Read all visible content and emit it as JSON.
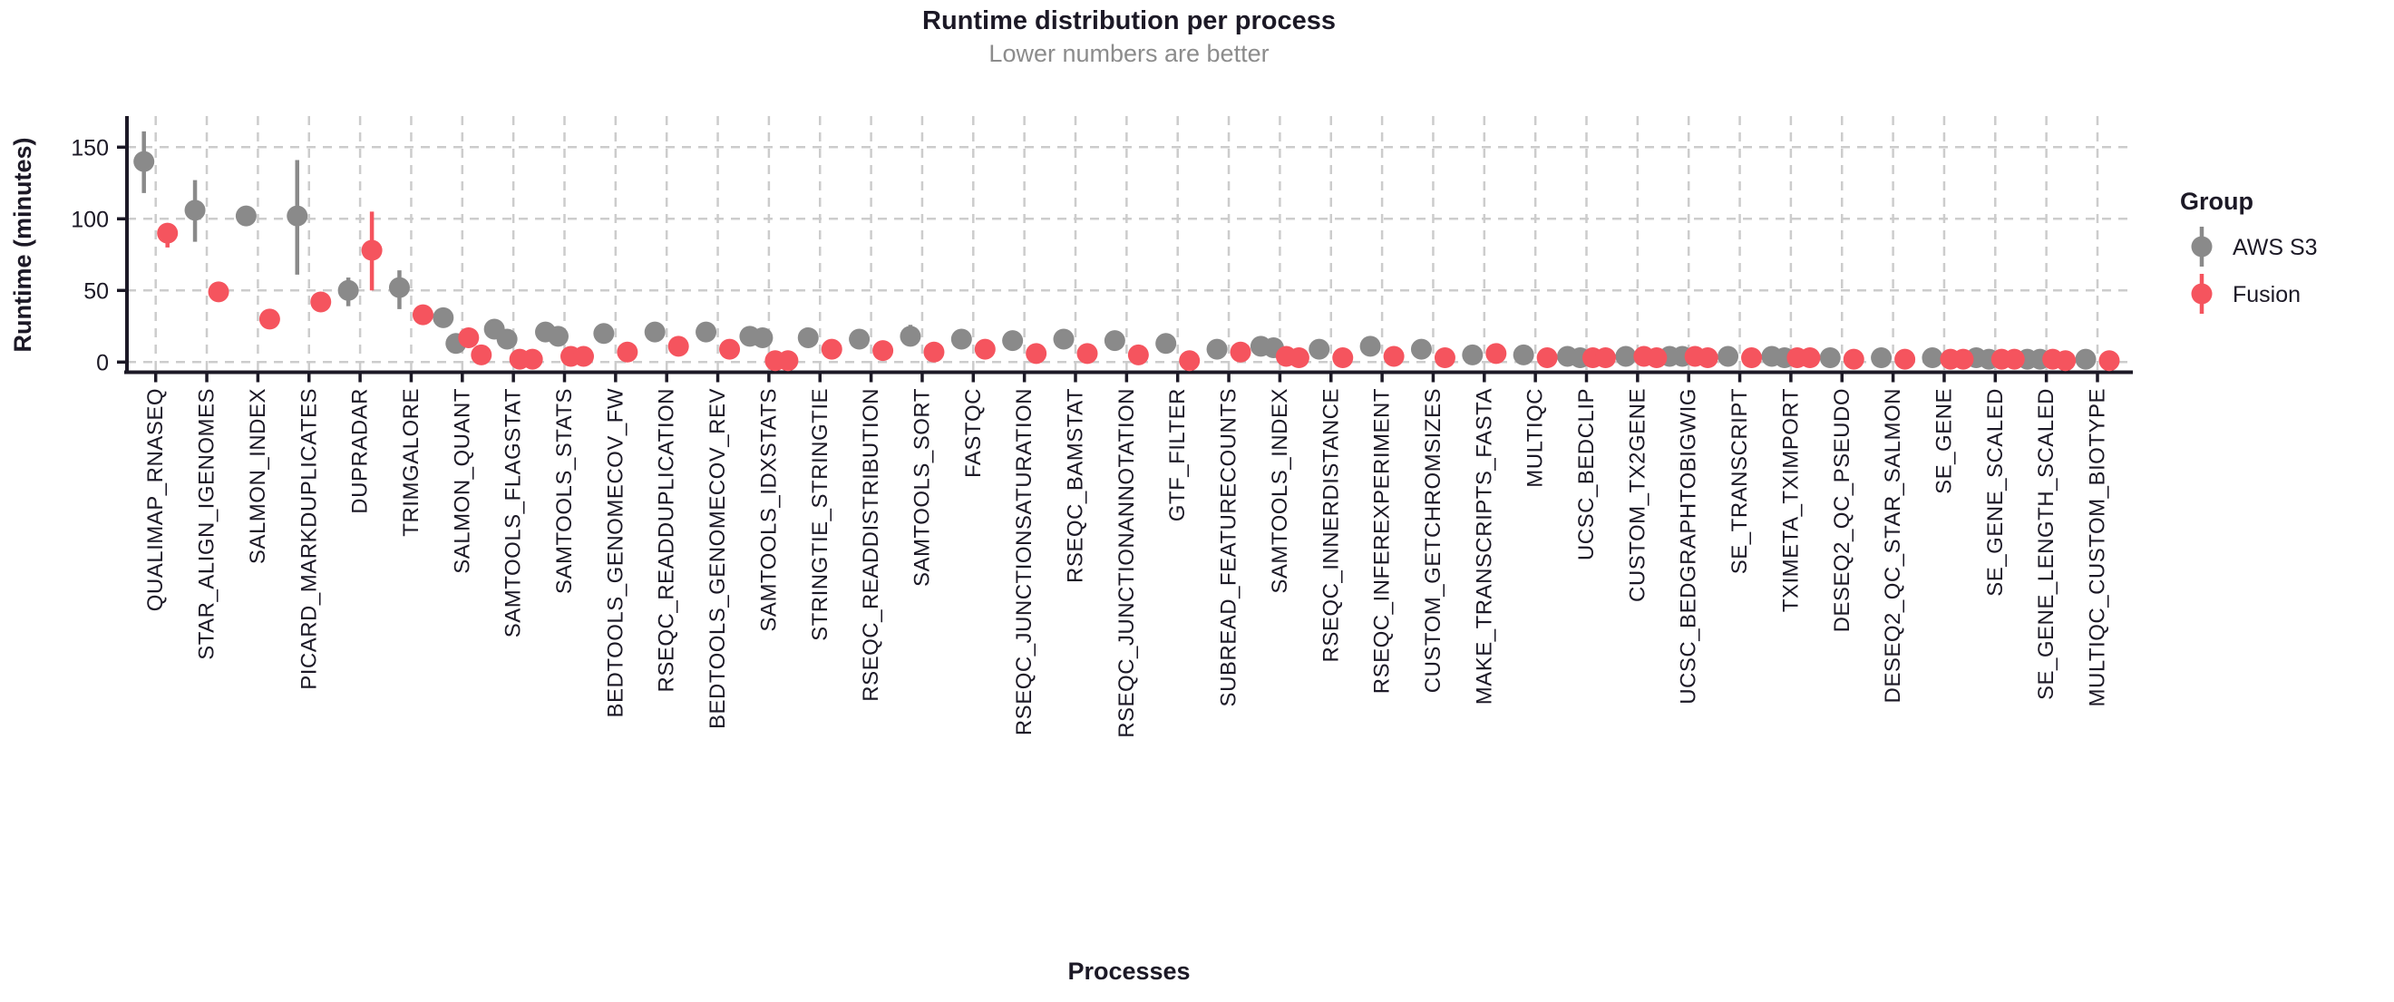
{
  "title": "Runtime distribution per process",
  "subtitle": "Lower numbers are better",
  "y_axis_title": "Runtime (minutes)",
  "x_axis_title": "Processes",
  "legend": {
    "title": "Group",
    "entries": [
      {
        "label": "AWS S3",
        "color": "#8a8a8a"
      },
      {
        "label": "Fusion",
        "color": "#f5545e"
      }
    ]
  },
  "colors": {
    "aws": "#8a8a8a",
    "fusion": "#f5545e",
    "axis": "#1c1926",
    "grid": "#cccccc",
    "subtitle": "#8c8c8c",
    "background": "#ffffff"
  },
  "chart_data": {
    "type": "scatter",
    "subtype": "pointrange-dodged",
    "title": "Runtime distribution per process",
    "subtitle": "Lower numbers are better",
    "xlabel": "Processes",
    "ylabel": "Runtime (minutes)",
    "yticks": [
      0,
      50,
      100,
      150
    ],
    "ylim": [
      0,
      170
    ],
    "grid": "dashed",
    "legend_position": "right",
    "series_names": [
      "AWS S3",
      "Fusion"
    ],
    "units": "minutes",
    "processes": [
      {
        "name": "QUALIMAP_RNASEQ",
        "aws": {
          "values": [
            140
          ],
          "range": [
            118,
            161
          ]
        },
        "fusion": {
          "values": [
            90
          ],
          "range": [
            80,
            97
          ]
        }
      },
      {
        "name": "STAR_ALIGN_IGENOMES",
        "aws": {
          "values": [
            106
          ],
          "range": [
            84,
            127
          ]
        },
        "fusion": {
          "values": [
            49
          ],
          "range": null
        }
      },
      {
        "name": "SALMON_INDEX",
        "aws": {
          "values": [
            102
          ],
          "range": null
        },
        "fusion": {
          "values": [
            30
          ],
          "range": null
        }
      },
      {
        "name": "PICARD_MARKDUPLICATES",
        "aws": {
          "values": [
            102
          ],
          "range": [
            61,
            141
          ]
        },
        "fusion": {
          "values": [
            42
          ],
          "range": null
        }
      },
      {
        "name": "DUPRADAR",
        "aws": {
          "values": [
            50
          ],
          "range": [
            39,
            59
          ]
        },
        "fusion": {
          "values": [
            78
          ],
          "range": [
            50,
            105
          ]
        }
      },
      {
        "name": "TRIMGALORE",
        "aws": {
          "values": [
            52
          ],
          "range": [
            37,
            64
          ]
        },
        "fusion": {
          "values": [
            33
          ],
          "range": null
        }
      },
      {
        "name": "SALMON_QUANT",
        "aws": {
          "values": [
            31,
            13
          ],
          "range": null
        },
        "fusion": {
          "values": [
            17,
            5
          ],
          "range": null
        }
      },
      {
        "name": "SAMTOOLS_FLAGSTAT",
        "aws": {
          "values": [
            23,
            16
          ],
          "range": null
        },
        "fusion": {
          "values": [
            2,
            2
          ],
          "range": null
        }
      },
      {
        "name": "SAMTOOLS_STATS",
        "aws": {
          "values": [
            21,
            18
          ],
          "range": null
        },
        "fusion": {
          "values": [
            4,
            4
          ],
          "range": null
        }
      },
      {
        "name": "BEDTOOLS_GENOMECOV_FW",
        "aws": {
          "values": [
            20
          ],
          "range": null
        },
        "fusion": {
          "values": [
            7
          ],
          "range": null
        }
      },
      {
        "name": "RSEQC_READDUPLICATION",
        "aws": {
          "values": [
            21
          ],
          "range": null
        },
        "fusion": {
          "values": [
            11
          ],
          "range": null
        }
      },
      {
        "name": "BEDTOOLS_GENOMECOV_REV",
        "aws": {
          "values": [
            21
          ],
          "range": null
        },
        "fusion": {
          "values": [
            9
          ],
          "range": null
        }
      },
      {
        "name": "SAMTOOLS_IDXSTATS",
        "aws": {
          "values": [
            18,
            17
          ],
          "range": null
        },
        "fusion": {
          "values": [
            1,
            1
          ],
          "range": null
        }
      },
      {
        "name": "STRINGTIE_STRINGTIE",
        "aws": {
          "values": [
            17
          ],
          "range": null
        },
        "fusion": {
          "values": [
            9
          ],
          "range": null
        }
      },
      {
        "name": "RSEQC_READDISTRIBUTION",
        "aws": {
          "values": [
            16
          ],
          "range": null
        },
        "fusion": {
          "values": [
            8
          ],
          "range": null
        }
      },
      {
        "name": "SAMTOOLS_SORT",
        "aws": {
          "values": [
            18
          ],
          "range": [
            11,
            26
          ]
        },
        "fusion": {
          "values": [
            7
          ],
          "range": null
        }
      },
      {
        "name": "FASTQC",
        "aws": {
          "values": [
            16
          ],
          "range": null
        },
        "fusion": {
          "values": [
            9
          ],
          "range": null
        }
      },
      {
        "name": "RSEQC_JUNCTIONSATURATION",
        "aws": {
          "values": [
            15
          ],
          "range": null
        },
        "fusion": {
          "values": [
            6
          ],
          "range": null
        }
      },
      {
        "name": "RSEQC_BAMSTAT",
        "aws": {
          "values": [
            16
          ],
          "range": null
        },
        "fusion": {
          "values": [
            6
          ],
          "range": null
        }
      },
      {
        "name": "RSEQC_JUNCTIONANNOTATION",
        "aws": {
          "values": [
            15
          ],
          "range": null
        },
        "fusion": {
          "values": [
            5
          ],
          "range": null
        }
      },
      {
        "name": "GTF_FILTER",
        "aws": {
          "values": [
            13
          ],
          "range": null
        },
        "fusion": {
          "values": [
            1
          ],
          "range": null
        }
      },
      {
        "name": "SUBREAD_FEATURECOUNTS",
        "aws": {
          "values": [
            9
          ],
          "range": null
        },
        "fusion": {
          "values": [
            7
          ],
          "range": null
        }
      },
      {
        "name": "SAMTOOLS_INDEX",
        "aws": {
          "values": [
            11,
            10
          ],
          "range": null
        },
        "fusion": {
          "values": [
            4,
            3
          ],
          "range": null
        }
      },
      {
        "name": "RSEQC_INNERDISTANCE",
        "aws": {
          "values": [
            9
          ],
          "range": null
        },
        "fusion": {
          "values": [
            3
          ],
          "range": null
        }
      },
      {
        "name": "RSEQC_INFEREXPERIMENT",
        "aws": {
          "values": [
            11
          ],
          "range": null
        },
        "fusion": {
          "values": [
            4
          ],
          "range": null
        }
      },
      {
        "name": "CUSTOM_GETCHROMSIZES",
        "aws": {
          "values": [
            9
          ],
          "range": null
        },
        "fusion": {
          "values": [
            3
          ],
          "range": null
        }
      },
      {
        "name": "MAKE_TRANSCRIPTS_FASTA",
        "aws": {
          "values": [
            5
          ],
          "range": null
        },
        "fusion": {
          "values": [
            6
          ],
          "range": null
        }
      },
      {
        "name": "MULTIQC",
        "aws": {
          "values": [
            5
          ],
          "range": null
        },
        "fusion": {
          "values": [
            3
          ],
          "range": null
        }
      },
      {
        "name": "UCSC_BEDCLIP",
        "aws": {
          "values": [
            4,
            3
          ],
          "range": null
        },
        "fusion": {
          "values": [
            3,
            3
          ],
          "range": null
        }
      },
      {
        "name": "CUSTOM_TX2GENE",
        "aws": {
          "values": [
            4
          ],
          "range": null
        },
        "fusion": {
          "values": [
            4,
            3
          ],
          "range": null
        }
      },
      {
        "name": "UCSC_BEDGRAPHTOBIGWIG",
        "aws": {
          "values": [
            4,
            4
          ],
          "range": null
        },
        "fusion": {
          "values": [
            4,
            3
          ],
          "range": null
        }
      },
      {
        "name": "SE_TRANSCRIPT",
        "aws": {
          "values": [
            4
          ],
          "range": null
        },
        "fusion": {
          "values": [
            3
          ],
          "range": null
        }
      },
      {
        "name": "TXIMETA_TXIMPORT",
        "aws": {
          "values": [
            4,
            3
          ],
          "range": null
        },
        "fusion": {
          "values": [
            3,
            3
          ],
          "range": null
        }
      },
      {
        "name": "DESEQ2_QC_PSEUDO",
        "aws": {
          "values": [
            3
          ],
          "range": null
        },
        "fusion": {
          "values": [
            2
          ],
          "range": null
        }
      },
      {
        "name": "DESEQ2_QC_STAR_SALMON",
        "aws": {
          "values": [
            3
          ],
          "range": null
        },
        "fusion": {
          "values": [
            2
          ],
          "range": null
        }
      },
      {
        "name": "SE_GENE",
        "aws": {
          "values": [
            3
          ],
          "range": [
            1,
            6
          ]
        },
        "fusion": {
          "values": [
            2,
            2
          ],
          "range": null
        }
      },
      {
        "name": "SE_GENE_SCALED",
        "aws": {
          "values": [
            3,
            2
          ],
          "range": null
        },
        "fusion": {
          "values": [
            2,
            2
          ],
          "range": null
        }
      },
      {
        "name": "SE_GENE_LENGTH_SCALED",
        "aws": {
          "values": [
            2,
            2
          ],
          "range": null
        },
        "fusion": {
          "values": [
            2,
            1
          ],
          "range": null
        }
      },
      {
        "name": "MULTIQC_CUSTOM_BIOTYPE",
        "aws": {
          "values": [
            2
          ],
          "range": null
        },
        "fusion": {
          "values": [
            1
          ],
          "range": null
        }
      }
    ]
  }
}
